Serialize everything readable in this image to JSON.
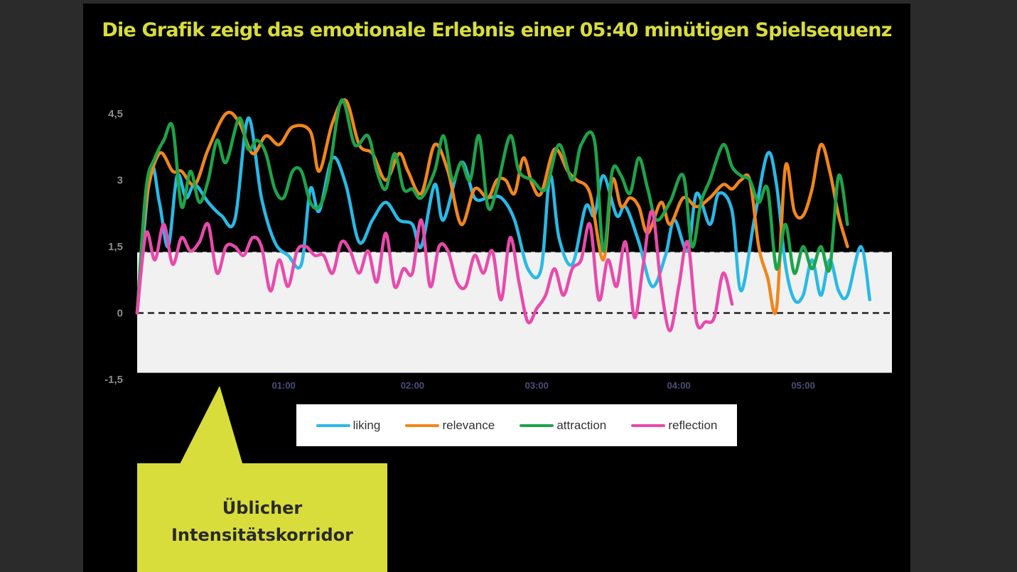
{
  "title": "Die Grafik zeigt das emotionale Erlebnis einer 05:40 minütigen Spielsequenz",
  "callout": {
    "line1": "Üblicher",
    "line2": "Intensitätskorridor"
  },
  "colors": {
    "liking": "#29b9e6",
    "relevance": "#f0861c",
    "attraction": "#1ea34a",
    "reflection": "#e84aac",
    "accent": "#d8dd3c",
    "corridor": "#f1f1f1"
  },
  "chart_data": {
    "type": "line",
    "x_unit": "seconds",
    "xlim": [
      0,
      340
    ],
    "ylim": [
      -1.5,
      4.5
    ],
    "y_ticks": [
      "-1,5",
      "0",
      "1,5",
      "3",
      "4,5"
    ],
    "y_tick_values": [
      -1.5,
      0,
      1.5,
      3,
      4.5
    ],
    "x_ticks": [
      "01:00",
      "02:00",
      "03:00",
      "04:00",
      "05:00"
    ],
    "x_tick_values": [
      66,
      124,
      180,
      244,
      300
    ],
    "corridor": {
      "from": -1.35,
      "to": 1.38
    },
    "baseline": 0,
    "legend": [
      "liking",
      "relevance",
      "attraction",
      "reflection"
    ],
    "series": [
      {
        "name": "liking",
        "points": [
          [
            0,
            0
          ],
          [
            6,
            3.2
          ],
          [
            10,
            2.5
          ],
          [
            14,
            1.5
          ],
          [
            18,
            3.1
          ],
          [
            22,
            2.6
          ],
          [
            26,
            2.9
          ],
          [
            32,
            2.5
          ],
          [
            38,
            2.2
          ],
          [
            44,
            2.1
          ],
          [
            50,
            4.4
          ],
          [
            56,
            2.6
          ],
          [
            62,
            1.6
          ],
          [
            68,
            1.3
          ],
          [
            74,
            1.1
          ],
          [
            78,
            2.8
          ],
          [
            82,
            2.3
          ],
          [
            88,
            3.5
          ],
          [
            94,
            2.9
          ],
          [
            100,
            1.6
          ],
          [
            106,
            2.1
          ],
          [
            112,
            2.5
          ],
          [
            118,
            2.1
          ],
          [
            124,
            2.0
          ],
          [
            128,
            1.5
          ],
          [
            134,
            2.9
          ],
          [
            138,
            2.1
          ],
          [
            146,
            3.4
          ],
          [
            152,
            2.6
          ],
          [
            158,
            2.6
          ],
          [
            164,
            2.6
          ],
          [
            170,
            2.1
          ],
          [
            176,
            1.0
          ],
          [
            182,
            1.0
          ],
          [
            186,
            3.1
          ],
          [
            190,
            1.7
          ],
          [
            196,
            1.1
          ],
          [
            202,
            2.4
          ],
          [
            206,
            2.2
          ],
          [
            210,
            3.1
          ],
          [
            216,
            2.2
          ],
          [
            220,
            2.4
          ],
          [
            226,
            1.6
          ],
          [
            232,
            0.6
          ],
          [
            238,
            1.3
          ],
          [
            242,
            2.1
          ],
          [
            248,
            1.4
          ],
          [
            252,
            2.7
          ],
          [
            258,
            2.0
          ],
          [
            262,
            2.7
          ],
          [
            268,
            2.3
          ],
          [
            272,
            0.5
          ],
          [
            278,
            2.1
          ],
          [
            284,
            3.6
          ],
          [
            288,
            2.9
          ],
          [
            292,
            1.1
          ],
          [
            296,
            0.3
          ],
          [
            300,
            0.4
          ],
          [
            304,
            1.2
          ],
          [
            308,
            0.4
          ],
          [
            312,
            1.2
          ],
          [
            316,
            0.5
          ],
          [
            320,
            0.4
          ],
          [
            326,
            1.5
          ],
          [
            330,
            0.3
          ]
        ]
      },
      {
        "name": "relevance",
        "points": [
          [
            0,
            0
          ],
          [
            4,
            2.5
          ],
          [
            10,
            3.6
          ],
          [
            16,
            3.2
          ],
          [
            20,
            3.2
          ],
          [
            26,
            2.9
          ],
          [
            32,
            3.7
          ],
          [
            40,
            4.5
          ],
          [
            46,
            4.3
          ],
          [
            52,
            3.6
          ],
          [
            58,
            4.0
          ],
          [
            64,
            3.8
          ],
          [
            70,
            4.2
          ],
          [
            78,
            4.1
          ],
          [
            82,
            3.2
          ],
          [
            88,
            4.3
          ],
          [
            94,
            4.8
          ],
          [
            100,
            3.8
          ],
          [
            106,
            3.6
          ],
          [
            112,
            3.0
          ],
          [
            118,
            3.6
          ],
          [
            122,
            3.2
          ],
          [
            128,
            2.7
          ],
          [
            134,
            3.8
          ],
          [
            140,
            3.2
          ],
          [
            146,
            2.0
          ],
          [
            152,
            2.8
          ],
          [
            158,
            2.6
          ],
          [
            162,
            3.0
          ],
          [
            166,
            3.0
          ],
          [
            170,
            2.7
          ],
          [
            174,
            3.5
          ],
          [
            178,
            2.9
          ],
          [
            182,
            2.7
          ],
          [
            188,
            3.7
          ],
          [
            194,
            3.2
          ],
          [
            198,
            3.0
          ],
          [
            204,
            2.7
          ],
          [
            210,
            1.2
          ],
          [
            214,
            3.0
          ],
          [
            218,
            2.4
          ],
          [
            222,
            2.6
          ],
          [
            226,
            2.4
          ],
          [
            230,
            1.8
          ],
          [
            236,
            2.5
          ],
          [
            240,
            2.0
          ],
          [
            246,
            2.6
          ],
          [
            252,
            2.4
          ],
          [
            258,
            2.6
          ],
          [
            264,
            2.9
          ],
          [
            268,
            2.8
          ],
          [
            272,
            3.0
          ],
          [
            276,
            3.0
          ],
          [
            280,
            1.5
          ],
          [
            284,
            0.8
          ],
          [
            288,
            0.1
          ],
          [
            292,
            3.3
          ],
          [
            296,
            2.3
          ],
          [
            300,
            2.2
          ],
          [
            304,
            2.8
          ],
          [
            308,
            3.8
          ],
          [
            312,
            3.2
          ],
          [
            316,
            2.2
          ],
          [
            320,
            1.5
          ]
        ]
      },
      {
        "name": "attraction",
        "points": [
          [
            0,
            0
          ],
          [
            4,
            2.8
          ],
          [
            8,
            3.5
          ],
          [
            12,
            3.9
          ],
          [
            16,
            4.2
          ],
          [
            20,
            2.4
          ],
          [
            24,
            3.2
          ],
          [
            28,
            2.5
          ],
          [
            32,
            3.0
          ],
          [
            36,
            3.9
          ],
          [
            40,
            3.4
          ],
          [
            46,
            4.4
          ],
          [
            50,
            3.7
          ],
          [
            54,
            3.9
          ],
          [
            58,
            3.6
          ],
          [
            62,
            2.8
          ],
          [
            66,
            2.6
          ],
          [
            70,
            3.2
          ],
          [
            74,
            3.2
          ],
          [
            78,
            2.5
          ],
          [
            82,
            2.4
          ],
          [
            86,
            3.0
          ],
          [
            92,
            4.8
          ],
          [
            98,
            3.8
          ],
          [
            104,
            4.0
          ],
          [
            108,
            3.2
          ],
          [
            112,
            2.8
          ],
          [
            116,
            3.6
          ],
          [
            120,
            2.8
          ],
          [
            124,
            2.8
          ],
          [
            128,
            2.6
          ],
          [
            134,
            3.2
          ],
          [
            138,
            4.0
          ],
          [
            142,
            3.0
          ],
          [
            146,
            3.4
          ],
          [
            150,
            3.0
          ],
          [
            154,
            4.0
          ],
          [
            158,
            2.4
          ],
          [
            162,
            2.8
          ],
          [
            168,
            4.0
          ],
          [
            172,
            3.2
          ],
          [
            178,
            3.0
          ],
          [
            184,
            2.8
          ],
          [
            190,
            3.8
          ],
          [
            196,
            3.0
          ],
          [
            200,
            3.8
          ],
          [
            206,
            3.9
          ],
          [
            210,
            1.4
          ],
          [
            214,
            3.2
          ],
          [
            218,
            3.1
          ],
          [
            222,
            2.7
          ],
          [
            226,
            3.5
          ],
          [
            230,
            2.8
          ],
          [
            234,
            2.1
          ],
          [
            240,
            2.5
          ],
          [
            246,
            3.1
          ],
          [
            250,
            1.5
          ],
          [
            254,
            2.5
          ],
          [
            258,
            3.0
          ],
          [
            264,
            3.8
          ],
          [
            268,
            3.3
          ],
          [
            272,
            3.1
          ],
          [
            276,
            3.0
          ],
          [
            280,
            2.5
          ],
          [
            284,
            2.8
          ],
          [
            288,
            1.0
          ],
          [
            292,
            2.0
          ],
          [
            296,
            0.9
          ],
          [
            300,
            1.5
          ],
          [
            304,
            1.0
          ],
          [
            308,
            1.5
          ],
          [
            312,
            1.0
          ],
          [
            316,
            3.1
          ],
          [
            320,
            2.0
          ]
        ]
      },
      {
        "name": "reflection",
        "points": [
          [
            0,
            0
          ],
          [
            4,
            1.8
          ],
          [
            8,
            1.2
          ],
          [
            12,
            2.0
          ],
          [
            16,
            1.1
          ],
          [
            20,
            1.7
          ],
          [
            24,
            1.4
          ],
          [
            28,
            1.6
          ],
          [
            32,
            2.0
          ],
          [
            36,
            0.9
          ],
          [
            40,
            1.5
          ],
          [
            44,
            1.5
          ],
          [
            48,
            1.3
          ],
          [
            52,
            1.7
          ],
          [
            56,
            1.5
          ],
          [
            60,
            0.5
          ],
          [
            64,
            1.2
          ],
          [
            68,
            0.6
          ],
          [
            72,
            1.4
          ],
          [
            76,
            1.5
          ],
          [
            80,
            1.3
          ],
          [
            84,
            1.3
          ],
          [
            88,
            0.9
          ],
          [
            92,
            1.6
          ],
          [
            96,
            1.4
          ],
          [
            100,
            0.9
          ],
          [
            104,
            1.4
          ],
          [
            108,
            0.7
          ],
          [
            112,
            1.8
          ],
          [
            116,
            0.6
          ],
          [
            120,
            1.0
          ],
          [
            124,
            0.9
          ],
          [
            128,
            2.1
          ],
          [
            132,
            0.6
          ],
          [
            136,
            1.5
          ],
          [
            140,
            1.4
          ],
          [
            144,
            0.7
          ],
          [
            148,
            0.6
          ],
          [
            152,
            1.3
          ],
          [
            156,
            0.9
          ],
          [
            160,
            1.4
          ],
          [
            164,
            0.3
          ],
          [
            168,
            1.7
          ],
          [
            172,
            0.7
          ],
          [
            176,
            -0.2
          ],
          [
            180,
            0.1
          ],
          [
            184,
            0.4
          ],
          [
            188,
            1.0
          ],
          [
            192,
            0.4
          ],
          [
            196,
            1.0
          ],
          [
            200,
            1.2
          ],
          [
            204,
            2.0
          ],
          [
            208,
            0.3
          ],
          [
            212,
            1.2
          ],
          [
            216,
            0.6
          ],
          [
            220,
            1.6
          ],
          [
            224,
            -0.1
          ],
          [
            228,
            1.1
          ],
          [
            232,
            2.3
          ],
          [
            236,
            0.6
          ],
          [
            240,
            -0.4
          ],
          [
            244,
            0.6
          ],
          [
            248,
            1.6
          ],
          [
            252,
            -0.2
          ],
          [
            256,
            -0.2
          ],
          [
            260,
            -0.1
          ],
          [
            264,
            0.9
          ],
          [
            268,
            0.2
          ]
        ]
      }
    ]
  }
}
